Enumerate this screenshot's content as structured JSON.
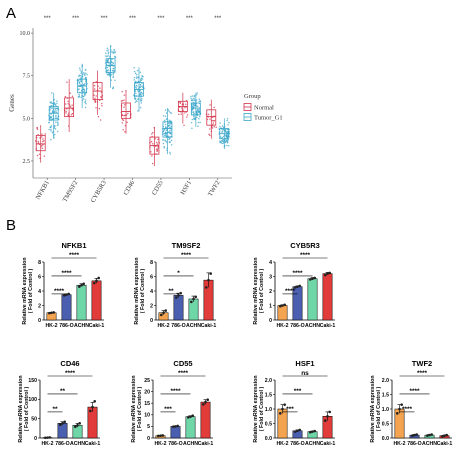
{
  "panels": {
    "a_label": "A",
    "b_label": "B"
  },
  "colors": {
    "normal": "#d2334b",
    "tumor": "#3aa6c9",
    "bars": [
      "#f4a451",
      "#4b5fb0",
      "#6fd6a8",
      "#e23c3a"
    ]
  },
  "chart_data": [
    {
      "type": "box",
      "title": "",
      "xlabel": "",
      "ylabel": "Genes",
      "ylim": [
        1.5,
        10.3
      ],
      "yticks": [
        "2.5",
        "5.0",
        "7.5",
        "10.0"
      ],
      "categories": [
        "NFKB1",
        "TM9SF2",
        "CYB5R3",
        "CD46",
        "CD55",
        "HSF1",
        "TWF2"
      ],
      "significance": [
        "***",
        "***",
        "***",
        "***",
        "***",
        "***",
        "***"
      ],
      "legend": {
        "title": "Group",
        "position": "right",
        "entries": [
          "Normal",
          "Tumor_G1"
        ]
      },
      "series": [
        {
          "name": "Normal",
          "median": [
            3.5,
            5.6,
            6.6,
            5.4,
            3.4,
            5.7,
            5.1
          ],
          "q1": [
            3.1,
            5.1,
            6.1,
            5.0,
            2.9,
            5.4,
            4.6
          ],
          "q3": [
            4.0,
            6.2,
            7.1,
            5.9,
            3.9,
            6.0,
            5.5
          ],
          "whisker_low": [
            2.4,
            4.2,
            5.2,
            4.1,
            2.2,
            4.7,
            3.8
          ],
          "whisker_high": [
            4.6,
            7.3,
            7.8,
            6.6,
            4.5,
            6.5,
            6.1
          ]
        },
        {
          "name": "Tumor_G1",
          "median": [
            5.3,
            6.9,
            8.1,
            6.7,
            4.4,
            5.6,
            4.1
          ],
          "q1": [
            4.9,
            6.5,
            7.7,
            6.3,
            3.9,
            5.2,
            3.8
          ],
          "q3": [
            5.7,
            7.3,
            8.5,
            7.1,
            4.8,
            5.9,
            4.4
          ],
          "whisker_low": [
            3.8,
            5.6,
            6.8,
            5.4,
            2.9,
            4.5,
            3.2
          ],
          "whisker_high": [
            6.5,
            8.2,
            9.3,
            8.0,
            5.6,
            6.5,
            5.0
          ]
        }
      ]
    },
    {
      "type": "bar",
      "title": "NFKB1",
      "ylabel": "Relative mRNA expression",
      "ylabel2": "( Fold of Control )",
      "categories": [
        "HK-2",
        "786-O",
        "ACHN",
        "Caki-1"
      ],
      "values": [
        1.0,
        3.5,
        4.8,
        5.4
      ],
      "errors": [
        0.05,
        0.1,
        0.2,
        0.35
      ],
      "points": [
        [
          0.95,
          1.0,
          1.05
        ],
        [
          3.4,
          3.5,
          3.6
        ],
        [
          4.6,
          4.8,
          5.0
        ],
        [
          5.1,
          5.4,
          5.8
        ]
      ],
      "ylim": [
        0,
        8
      ],
      "yticks": [
        "0",
        "2",
        "4",
        "6",
        "8"
      ],
      "comparisons": [
        {
          "to": 1,
          "label": "****"
        },
        {
          "to": 2,
          "label": "****"
        },
        {
          "to": 3,
          "label": "****"
        }
      ]
    },
    {
      "type": "bar",
      "title": "TM9SF2",
      "ylabel": "Relative mRNA expression",
      "ylabel2": "( Fold of Control )",
      "categories": [
        "HK-2",
        "786-O",
        "ACHN",
        "Caki-1"
      ],
      "values": [
        1.0,
        3.4,
        2.9,
        5.5
      ],
      "errors": [
        0.3,
        0.3,
        0.4,
        1.0
      ],
      "points": [
        [
          0.7,
          1.0,
          1.3
        ],
        [
          3.1,
          3.4,
          3.7
        ],
        [
          2.5,
          2.9,
          3.2
        ],
        [
          4.5,
          5.5,
          6.4
        ]
      ],
      "ylim": [
        0,
        8
      ],
      "yticks": [
        "0",
        "2",
        "4",
        "6",
        "8"
      ],
      "comparisons": [
        {
          "to": 1,
          "label": "**"
        },
        {
          "to": 2,
          "label": "*"
        },
        {
          "to": 3,
          "label": "****"
        }
      ]
    },
    {
      "type": "bar",
      "title": "CYB5R3",
      "ylabel": "Relative mRNA expression",
      "ylabel2": "( Fold of Control )",
      "categories": [
        "HK-2",
        "786-O",
        "ACHN",
        "Caki-1"
      ],
      "values": [
        1.0,
        2.3,
        2.85,
        3.2
      ],
      "errors": [
        0.05,
        0.05,
        0.08,
        0.08
      ],
      "points": [
        [
          0.95,
          1.0,
          1.05
        ],
        [
          2.25,
          2.3,
          2.35
        ],
        [
          2.8,
          2.85,
          2.9
        ],
        [
          3.1,
          3.2,
          3.25
        ]
      ],
      "ylim": [
        0,
        4
      ],
      "yticks": [
        "0",
        "1",
        "2",
        "3",
        "4"
      ],
      "comparisons": [
        {
          "to": 1,
          "label": "****"
        },
        {
          "to": 2,
          "label": "****"
        },
        {
          "to": 3,
          "label": "****"
        }
      ]
    },
    {
      "type": "bar",
      "title": "CD46",
      "ylabel": "Relative mRNA expression",
      "ylabel2": "( Fold of Control )",
      "categories": [
        "HK-2",
        "786-O",
        "ACHN",
        "Caki-1"
      ],
      "values": [
        1.0,
        38.0,
        33.0,
        80.0
      ],
      "errors": [
        0.5,
        4.0,
        5.0,
        12.0
      ],
      "points": [
        [
          0.5,
          1.0,
          1.5
        ],
        [
          34,
          38,
          42
        ],
        [
          29,
          33,
          38
        ],
        [
          70,
          80,
          95
        ]
      ],
      "ylim": [
        0,
        150
      ],
      "yticks": [
        "0",
        "50",
        "100",
        "150"
      ],
      "comparisons": [
        {
          "to": 1,
          "label": "**"
        },
        {
          "to": 2,
          "label": "**"
        },
        {
          "to": 3,
          "label": "****"
        }
      ]
    },
    {
      "type": "bar",
      "title": "CD55",
      "ylabel": "Relative mRNA expression",
      "ylabel2": "( Fold of Control )",
      "categories": [
        "HK-2",
        "786-O",
        "ACHN",
        "Caki-1"
      ],
      "values": [
        1.0,
        5.0,
        9.2,
        15.5
      ],
      "errors": [
        0.1,
        0.2,
        0.4,
        1.0
      ],
      "points": [
        [
          0.9,
          1.0,
          1.1
        ],
        [
          4.9,
          5.0,
          5.2
        ],
        [
          8.9,
          9.2,
          9.6
        ],
        [
          14.5,
          15.5,
          16.5
        ]
      ],
      "ylim": [
        0,
        25
      ],
      "yticks": [
        "0",
        "5",
        "10",
        "15",
        "20",
        "25"
      ],
      "comparisons": [
        {
          "to": 1,
          "label": "***"
        },
        {
          "to": 2,
          "label": "****"
        },
        {
          "to": 3,
          "label": "****"
        }
      ]
    },
    {
      "type": "bar",
      "title": "HSF1",
      "ylabel": "Relative mRNA expression",
      "ylabel2": "( Fold of Control )",
      "categories": [
        "HK-2",
        "786-O",
        "ACHN",
        "Caki-1"
      ],
      "values": [
        1.0,
        0.25,
        0.22,
        0.75
      ],
      "errors": [
        0.15,
        0.03,
        0.02,
        0.15
      ],
      "points": [
        [
          0.85,
          1.0,
          1.15
        ],
        [
          0.22,
          0.25,
          0.28
        ],
        [
          0.2,
          0.22,
          0.24
        ],
        [
          0.6,
          0.75,
          0.9
        ]
      ],
      "ylim": [
        0,
        2
      ],
      "yticks": [
        "0.0",
        "0.5",
        "1.0",
        "1.5",
        "2.0"
      ],
      "comparisons": [
        {
          "to": 1,
          "label": "***"
        },
        {
          "to": 2,
          "label": "***"
        },
        {
          "to": 3,
          "label": "ns"
        }
      ]
    },
    {
      "type": "bar",
      "title": "TWF2",
      "ylabel": "Relative mRNA expression",
      "ylabel2": "( Fold of Control )",
      "categories": [
        "HK-2",
        "786-O",
        "ACHN",
        "Caki-1"
      ],
      "values": [
        1.0,
        0.1,
        0.1,
        0.08
      ],
      "errors": [
        0.15,
        0.02,
        0.02,
        0.02
      ],
      "points": [
        [
          0.85,
          1.0,
          1.15
        ],
        [
          0.08,
          0.1,
          0.12
        ],
        [
          0.08,
          0.1,
          0.12
        ],
        [
          0.06,
          0.08,
          0.1
        ]
      ],
      "ylim": [
        0,
        2
      ],
      "yticks": [
        "0.0",
        "0.5",
        "1.0",
        "1.5",
        "2.0"
      ],
      "comparisons": [
        {
          "to": 1,
          "label": "****"
        },
        {
          "to": 2,
          "label": "****"
        },
        {
          "to": 3,
          "label": "****"
        }
      ]
    }
  ]
}
